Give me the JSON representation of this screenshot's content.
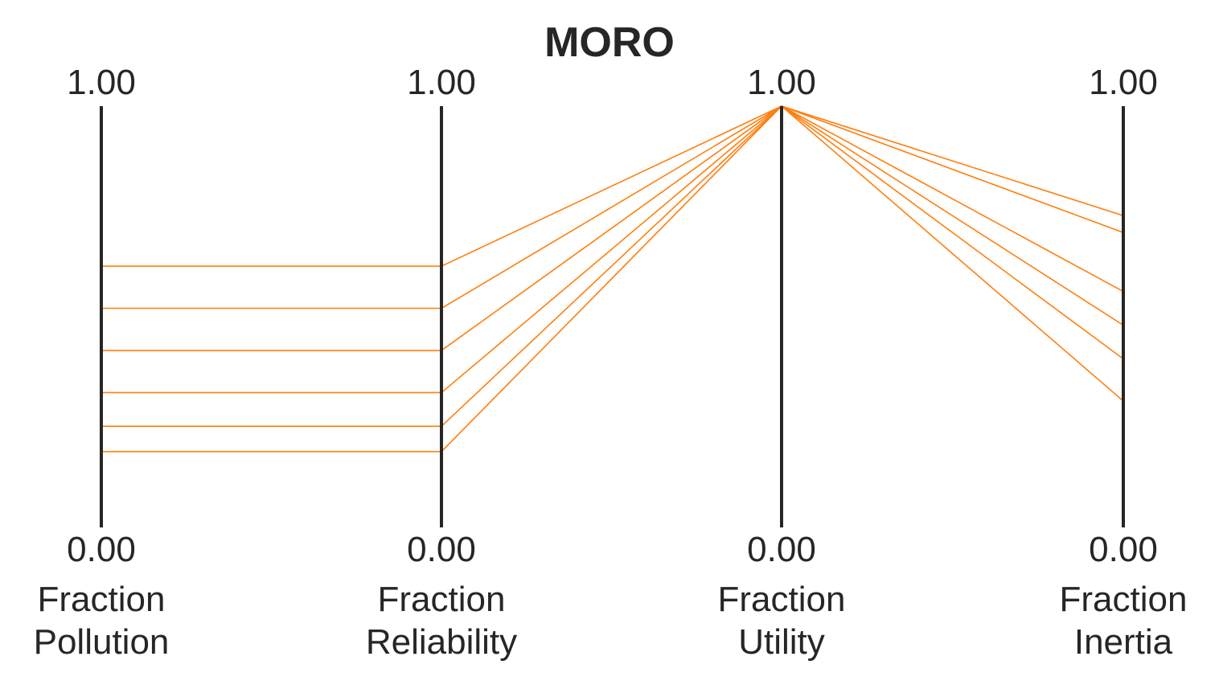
{
  "chart_data": {
    "type": "parallel-coordinates",
    "title": "MORO",
    "axes": [
      {
        "label_line1": "Fraction",
        "label_line2": "Pollution",
        "max_label": "1.00",
        "min_label": "0.00"
      },
      {
        "label_line1": "Fraction",
        "label_line2": "Reliability",
        "max_label": "1.00",
        "min_label": "0.00"
      },
      {
        "label_line1": "Fraction",
        "label_line2": "Utility",
        "max_label": "1.00",
        "min_label": "0.00"
      },
      {
        "label_line1": "Fraction",
        "label_line2": "Inertia",
        "max_label": "1.00",
        "min_label": "0.00"
      }
    ],
    "ylim": [
      0,
      1
    ],
    "line_color": "#ff7f0e",
    "lines": [
      {
        "values": [
          0.62,
          0.62,
          1.0,
          0.74
        ]
      },
      {
        "values": [
          0.52,
          0.52,
          1.0,
          0.7
        ]
      },
      {
        "values": [
          0.42,
          0.42,
          1.0,
          0.56
        ]
      },
      {
        "values": [
          0.32,
          0.32,
          1.0,
          0.48
        ]
      },
      {
        "values": [
          0.24,
          0.24,
          1.0,
          0.4
        ]
      },
      {
        "values": [
          0.18,
          0.18,
          1.0,
          0.3
        ]
      }
    ]
  }
}
